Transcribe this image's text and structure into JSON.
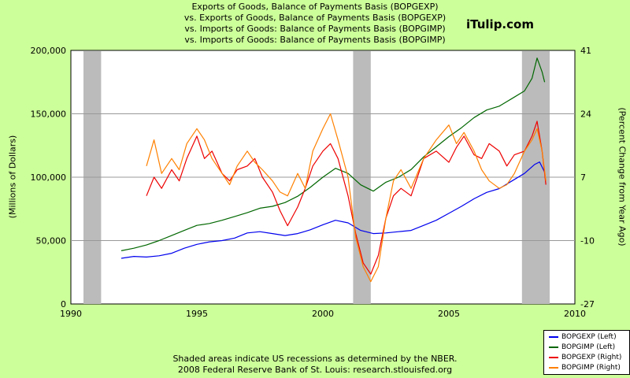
{
  "chart_data": {
    "type": "line",
    "title": [
      "Exports of Goods, Balance of Payments Basis (BOPGEXP)",
      "vs.  Exports of Goods, Balance of Payments Basis (BOPGEXP)",
      "vs.  Imports of Goods: Balance of Payments Basis (BOPGIMP)",
      "vs.  Imports of Goods: Balance of Payments Basis (BOPGIMP)"
    ],
    "brand": "iTulip.com",
    "ylabel_left": "(Millions of Dollars)",
    "ylabel_right": "(Percent Change from Year Ago)",
    "xlim": [
      1990,
      2010
    ],
    "ylim_left": [
      0,
      200000
    ],
    "ylim_right": [
      -27,
      41
    ],
    "x_ticks": [
      "1990",
      "1995",
      "2000",
      "2005",
      "2010"
    ],
    "y_ticks_left": [
      "0",
      "50,000",
      "100,000",
      "150,000",
      "200,000"
    ],
    "y_ticks_right": [
      "-27",
      "-10",
      "7",
      "24",
      "41"
    ],
    "grid": true,
    "recessions": [
      [
        1990.5,
        1991.2
      ],
      [
        2001.2,
        2001.9
      ],
      [
        2007.9,
        2009.0
      ]
    ],
    "series": [
      {
        "name": "BOPGEXP (Left)",
        "axis": "left",
        "color": "#0000EE",
        "x": [
          1992.0,
          1992.5,
          1993.0,
          1993.5,
          1994.0,
          1994.5,
          1995.0,
          1995.5,
          1996.0,
          1996.5,
          1997.0,
          1997.5,
          1998.0,
          1998.5,
          1999.0,
          1999.5,
          2000.0,
          2000.5,
          2001.0,
          2001.5,
          2002.0,
          2002.5,
          2003.0,
          2003.5,
          2004.0,
          2004.5,
          2005.0,
          2005.5,
          2006.0,
          2006.5,
          2007.0,
          2007.5,
          2008.0,
          2008.4,
          2008.6,
          2008.8
        ],
        "values": [
          36000,
          37500,
          37000,
          38000,
          40000,
          44000,
          47000,
          49000,
          50000,
          52000,
          56000,
          57000,
          55500,
          54000,
          55500,
          58500,
          62500,
          66000,
          64000,
          58000,
          55500,
          56000,
          57000,
          58000,
          62000,
          66000,
          71500,
          77000,
          83000,
          88000,
          91000,
          97000,
          103000,
          110000,
          112000,
          104000
        ]
      },
      {
        "name": "BOPGIMP (Left)",
        "axis": "left",
        "color": "#006600",
        "x": [
          1992.0,
          1992.5,
          1993.0,
          1993.5,
          1994.0,
          1994.5,
          1995.0,
          1995.5,
          1996.0,
          1996.5,
          1997.0,
          1997.5,
          1998.0,
          1998.5,
          1999.0,
          1999.5,
          2000.0,
          2000.5,
          2001.0,
          2001.5,
          2002.0,
          2002.5,
          2003.0,
          2003.5,
          2004.0,
          2004.5,
          2005.0,
          2005.5,
          2006.0,
          2006.5,
          2007.0,
          2007.5,
          2008.0,
          2008.3,
          2008.5,
          2008.7,
          2008.8
        ],
        "values": [
          42000,
          44000,
          46500,
          50000,
          54000,
          58000,
          62000,
          63500,
          66000,
          69000,
          72000,
          75500,
          77000,
          80000,
          85000,
          92000,
          100000,
          107000,
          103000,
          94000,
          89000,
          96000,
          100000,
          106000,
          116000,
          124000,
          132000,
          139000,
          147000,
          153000,
          156000,
          162000,
          168000,
          178000,
          194000,
          183000,
          175000
        ]
      },
      {
        "name": "BOPGEXP (Right)",
        "axis": "right",
        "color": "#EE0000",
        "x": [
          1993.0,
          1993.3,
          1993.6,
          1994.0,
          1994.3,
          1994.6,
          1995.0,
          1995.3,
          1995.6,
          1996.0,
          1996.3,
          1996.6,
          1997.0,
          1997.3,
          1997.6,
          1998.0,
          1998.3,
          1998.6,
          1999.0,
          1999.3,
          1999.6,
          2000.0,
          2000.3,
          2000.6,
          2001.0,
          2001.3,
          2001.6,
          2001.9,
          2002.2,
          2002.5,
          2002.8,
          2003.1,
          2003.5,
          2004.0,
          2004.5,
          2005.0,
          2005.3,
          2005.6,
          2006.0,
          2006.3,
          2006.6,
          2007.0,
          2007.3,
          2007.6,
          2008.0,
          2008.3,
          2008.5,
          2008.7,
          2008.85
        ],
        "values": [
          2,
          7,
          4,
          9,
          6,
          12,
          18,
          12,
          14,
          8,
          6,
          9,
          10,
          12,
          7,
          3,
          -2,
          -6,
          -1,
          4,
          10,
          14,
          16,
          12,
          2,
          -8,
          -16,
          -19,
          -14,
          -4,
          2,
          4,
          2,
          12,
          14,
          11,
          15,
          18,
          13,
          12,
          16,
          14,
          10,
          13,
          14,
          18,
          22,
          14,
          5
        ]
      },
      {
        "name": "BOPGIMP (Right)",
        "axis": "right",
        "color": "#FF8000",
        "x": [
          1993.0,
          1993.3,
          1993.6,
          1994.0,
          1994.3,
          1994.6,
          1995.0,
          1995.3,
          1995.6,
          1996.0,
          1996.3,
          1996.6,
          1997.0,
          1997.3,
          1997.6,
          1998.0,
          1998.3,
          1998.6,
          1999.0,
          1999.3,
          1999.6,
          2000.0,
          2000.3,
          2000.6,
          2001.0,
          2001.3,
          2001.6,
          2001.9,
          2002.2,
          2002.5,
          2002.8,
          2003.1,
          2003.5,
          2004.0,
          2004.5,
          2005.0,
          2005.3,
          2005.6,
          2006.0,
          2006.3,
          2006.6,
          2007.0,
          2007.3,
          2007.6,
          2008.0,
          2008.3,
          2008.5,
          2008.7,
          2008.85
        ],
        "values": [
          10,
          17,
          8,
          12,
          9,
          16,
          20,
          17,
          12,
          8,
          5,
          10,
          14,
          11,
          9,
          6,
          3,
          2,
          8,
          4,
          14,
          20,
          24,
          17,
          7,
          -9,
          -17,
          -21,
          -17,
          -4,
          6,
          9,
          4,
          12,
          17,
          21,
          16,
          19,
          14,
          9,
          6,
          4,
          5,
          8,
          14,
          17,
          20,
          14,
          6
        ]
      }
    ],
    "footer": [
      "Shaded areas indicate US recessions as determined by the NBER.",
      "2008 Federal Reserve Bank of St. Louis: research.stlouisfed.org"
    ]
  }
}
